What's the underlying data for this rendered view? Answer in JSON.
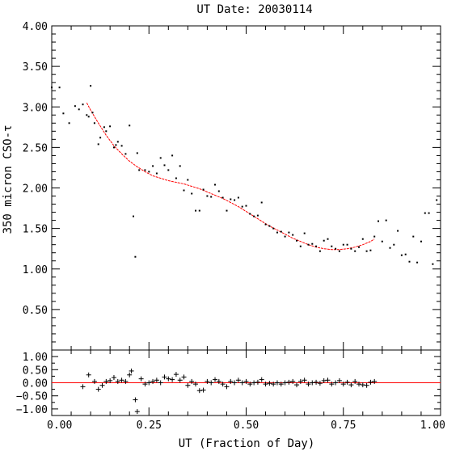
{
  "chart_data": [
    {
      "id": "main",
      "type": "scatter",
      "title": "UT Date: 20030114",
      "ylabel": "350 micron CSO-τ",
      "xlim": [
        0,
        1
      ],
      "ylim": [
        0,
        4
      ],
      "yticks": [
        "4.00",
        "3.50",
        "3.00",
        "2.50",
        "2.00",
        "1.50",
        "1.00",
        "0.50"
      ],
      "ytick_values": [
        4.0,
        3.5,
        3.0,
        2.5,
        2.0,
        1.5,
        1.0,
        0.5
      ],
      "colors": {
        "points": "#000000",
        "fit": "#ff0000"
      },
      "series": [
        {
          "kind": "points",
          "x": [
            0.0,
            0.02,
            0.03,
            0.045,
            0.06,
            0.07,
            0.08,
            0.09,
            0.095,
            0.1,
            0.105,
            0.11,
            0.12,
            0.125,
            0.135,
            0.14,
            0.15,
            0.16,
            0.165,
            0.17,
            0.18,
            0.19,
            0.2,
            0.21,
            0.215,
            0.22,
            0.225,
            0.24,
            0.25,
            0.26,
            0.27,
            0.28,
            0.29,
            0.3,
            0.31,
            0.32,
            0.33,
            0.34,
            0.35,
            0.36,
            0.37,
            0.38,
            0.39,
            0.4,
            0.41,
            0.42,
            0.43,
            0.44,
            0.45,
            0.46,
            0.47,
            0.48,
            0.49,
            0.5,
            0.51,
            0.52,
            0.53,
            0.54,
            0.55,
            0.56,
            0.57,
            0.58,
            0.59,
            0.6,
            0.61,
            0.62,
            0.63,
            0.64,
            0.65,
            0.66,
            0.67,
            0.68,
            0.69,
            0.7,
            0.71,
            0.72,
            0.73,
            0.74,
            0.75,
            0.76,
            0.77,
            0.78,
            0.79,
            0.8,
            0.81,
            0.82,
            0.83,
            0.84,
            0.85,
            0.86,
            0.87,
            0.88,
            0.89,
            0.9,
            0.91,
            0.92,
            0.93,
            0.94,
            0.95,
            0.96,
            0.97,
            0.98,
            0.99
          ],
          "y": [
            3.24,
            3.24,
            2.92,
            2.8,
            3.01,
            2.97,
            3.03,
            2.9,
            2.88,
            3.26,
            2.93,
            2.8,
            2.54,
            2.62,
            2.75,
            2.7,
            2.76,
            2.5,
            2.53,
            2.57,
            2.52,
            2.42,
            2.77,
            1.65,
            1.15,
            2.43,
            2.22,
            2.22,
            2.2,
            2.27,
            2.18,
            2.37,
            2.28,
            2.22,
            2.4,
            2.12,
            2.27,
            1.97,
            2.1,
            1.93,
            1.72,
            1.72,
            1.98,
            1.9,
            1.89,
            2.04,
            1.96,
            1.88,
            1.72,
            1.86,
            1.85,
            1.88,
            1.77,
            1.78,
            1.68,
            1.65,
            1.66,
            1.82,
            1.55,
            1.53,
            1.5,
            1.45,
            1.46,
            1.4,
            1.45,
            1.42,
            1.35,
            1.28,
            1.44,
            1.3,
            1.31,
            1.28,
            1.22,
            1.35,
            1.37,
            1.28,
            1.25,
            1.22,
            1.3,
            1.3,
            1.25,
            1.22,
            1.27,
            1.37,
            1.22,
            1.23,
            1.4,
            1.59,
            1.34,
            1.6,
            1.26,
            1.3,
            1.47,
            1.17,
            1.18,
            1.09,
            1.4,
            1.08,
            1.34,
            1.69,
            1.69,
            1.06,
            1.85
          ]
        },
        {
          "kind": "fit",
          "x": [
            0.09,
            0.1,
            0.12,
            0.14,
            0.16,
            0.18,
            0.2,
            0.22,
            0.24,
            0.26,
            0.28,
            0.3,
            0.32,
            0.34,
            0.36,
            0.38,
            0.4,
            0.42,
            0.44,
            0.46,
            0.48,
            0.5,
            0.52,
            0.54,
            0.56,
            0.58,
            0.6,
            0.62,
            0.64,
            0.66,
            0.68,
            0.7,
            0.72,
            0.74,
            0.76,
            0.78,
            0.8,
            0.82,
            0.83
          ],
          "y": [
            3.05,
            2.96,
            2.8,
            2.65,
            2.52,
            2.42,
            2.33,
            2.26,
            2.2,
            2.15,
            2.12,
            2.09,
            2.07,
            2.05,
            2.02,
            1.99,
            1.95,
            1.91,
            1.87,
            1.82,
            1.77,
            1.71,
            1.65,
            1.59,
            1.53,
            1.48,
            1.43,
            1.38,
            1.34,
            1.3,
            1.27,
            1.25,
            1.24,
            1.24,
            1.25,
            1.27,
            1.3,
            1.34,
            1.37
          ]
        }
      ]
    },
    {
      "id": "residuals",
      "type": "scatter",
      "xlabel": "UT (Fraction of Day)",
      "xlim": [
        0,
        1
      ],
      "ylim": [
        -1.25,
        1.25
      ],
      "xticks": [
        "0.00",
        "0.25",
        "0.50",
        "0.75",
        "1.00"
      ],
      "xtick_values": [
        0,
        0.25,
        0.5,
        0.75,
        1.0
      ],
      "yticks": [
        "1.00",
        "0.50",
        "0.00",
        "−0.50",
        "−1.00"
      ],
      "ytick_values": [
        1.0,
        0.5,
        0.0,
        -0.5,
        -1.0
      ],
      "colors": {
        "points": "#000000",
        "zero_line": "#ff0000"
      },
      "series": [
        {
          "kind": "residual",
          "x": [
            0.08,
            0.095,
            0.11,
            0.12,
            0.13,
            0.14,
            0.15,
            0.16,
            0.17,
            0.18,
            0.19,
            0.2,
            0.205,
            0.215,
            0.22,
            0.23,
            0.24,
            0.25,
            0.26,
            0.27,
            0.28,
            0.29,
            0.3,
            0.31,
            0.32,
            0.33,
            0.34,
            0.35,
            0.36,
            0.37,
            0.38,
            0.39,
            0.4,
            0.41,
            0.42,
            0.43,
            0.44,
            0.45,
            0.46,
            0.47,
            0.48,
            0.49,
            0.5,
            0.51,
            0.52,
            0.53,
            0.54,
            0.55,
            0.56,
            0.57,
            0.58,
            0.59,
            0.6,
            0.61,
            0.62,
            0.63,
            0.64,
            0.65,
            0.66,
            0.67,
            0.68,
            0.69,
            0.7,
            0.71,
            0.72,
            0.73,
            0.74,
            0.75,
            0.76,
            0.77,
            0.78,
            0.79,
            0.8,
            0.81,
            0.82,
            0.83
          ],
          "y": [
            -0.15,
            0.3,
            0.05,
            -0.25,
            -0.1,
            0.05,
            0.08,
            0.2,
            0.05,
            0.1,
            0.05,
            0.3,
            0.45,
            -0.65,
            -1.1,
            0.15,
            -0.05,
            0.0,
            0.05,
            0.1,
            0.0,
            0.22,
            0.15,
            0.12,
            0.32,
            0.1,
            0.22,
            -0.1,
            0.05,
            -0.05,
            -0.3,
            -0.28,
            0.05,
            0.0,
            0.12,
            0.05,
            -0.05,
            -0.15,
            0.05,
            0.0,
            0.1,
            0.0,
            0.05,
            -0.05,
            0.0,
            0.02,
            0.12,
            -0.05,
            -0.02,
            -0.05,
            0.0,
            -0.05,
            0.0,
            0.02,
            0.05,
            -0.08,
            0.05,
            0.1,
            -0.05,
            0.0,
            0.02,
            -0.02,
            0.08,
            0.1,
            -0.05,
            0.0,
            0.08,
            -0.05,
            0.02,
            -0.08,
            0.05,
            -0.05,
            -0.08,
            -0.1,
            0.02,
            0.05
          ]
        }
      ]
    }
  ]
}
